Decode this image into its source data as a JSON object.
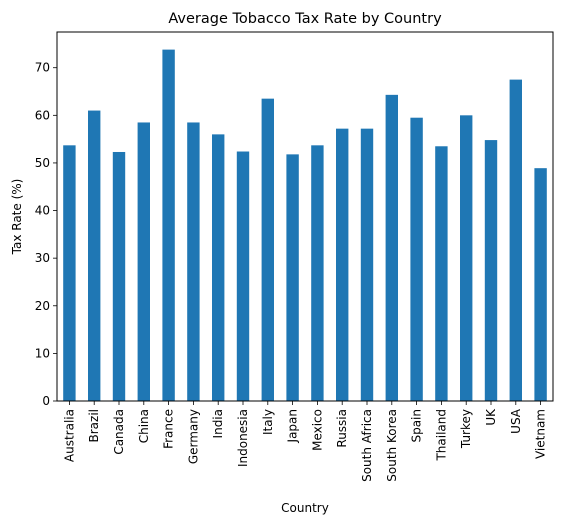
{
  "chart_data": {
    "type": "bar",
    "title": "Average Tobacco Tax Rate by Country",
    "xlabel": "Country",
    "ylabel": "Tax Rate (%)",
    "categories": [
      "Australia",
      "Brazil",
      "Canada",
      "China",
      "France",
      "Germany",
      "India",
      "Indonesia",
      "Italy",
      "Japan",
      "Mexico",
      "Russia",
      "South Africa",
      "South Korea",
      "Spain",
      "Thailand",
      "Turkey",
      "UK",
      "USA",
      "Vietnam"
    ],
    "values": [
      53.7,
      61.0,
      52.3,
      58.5,
      73.8,
      58.5,
      56.0,
      52.4,
      63.5,
      51.8,
      53.7,
      57.2,
      57.2,
      64.3,
      59.5,
      53.5,
      60.0,
      54.8,
      67.5,
      48.9
    ],
    "ylim": [
      0,
      77.5
    ],
    "yticks": [
      0,
      10,
      20,
      30,
      40,
      50,
      60,
      70
    ],
    "grid": false,
    "legend": "none",
    "bar_color": "#1f77b4"
  }
}
